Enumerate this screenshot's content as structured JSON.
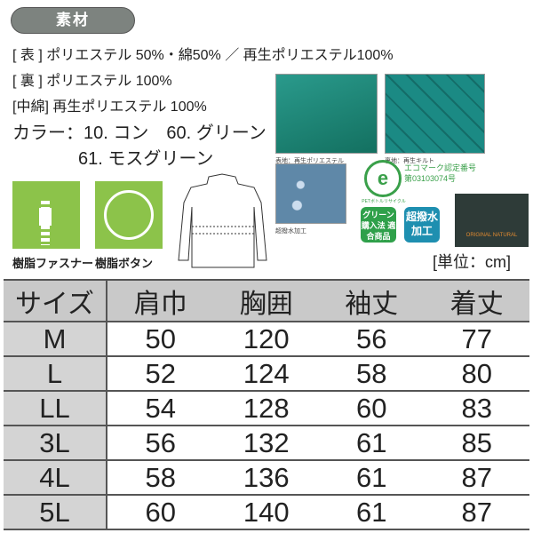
{
  "section_title": "素材",
  "materials": [
    {
      "label": "[ 表 ]",
      "value": "ポリエステル 50%・綿50% ／ 再生ポリエステル100%"
    },
    {
      "label": "[ 裏 ]",
      "value": "ポリエステル 100%"
    },
    {
      "label": "[中綿]",
      "value": "再生ポリエステル 100%"
    }
  ],
  "colors": {
    "label": "カラー：",
    "line1": "10. コン　60. グリーン",
    "line2": "61. モスグリーン"
  },
  "fabric_images": [
    {
      "caption": "表地：再生ポリエステル"
    },
    {
      "caption": "裏地：再生キルト"
    }
  ],
  "water_caption": "超撥水加工",
  "ecomark": {
    "title": "エコマーク認定番号",
    "number": "第03103074号",
    "ring_text": "PETボトルリサイクル"
  },
  "badges": {
    "green": "グリーン 購入法 適合商品",
    "blue": "超撥水 加工"
  },
  "brand_label": "ORIGINAL NATURAL",
  "features": [
    {
      "label": "樹脂ファスナー",
      "icon": "zipper-icon"
    },
    {
      "label": "樹脂ボタン",
      "icon": "button-ring-icon"
    }
  ],
  "unit": "[単位：cm]",
  "accent_colors": {
    "green": "#8cc34a",
    "teal": "#1f8a80",
    "header_gray": "#c9c9c9"
  },
  "size_table": {
    "headers": [
      "サイズ",
      "肩巾",
      "胸囲",
      "袖丈",
      "着丈"
    ],
    "rows": [
      [
        "M",
        "50",
        "120",
        "56",
        "77"
      ],
      [
        "L",
        "52",
        "124",
        "58",
        "80"
      ],
      [
        "LL",
        "54",
        "128",
        "60",
        "83"
      ],
      [
        "3L",
        "56",
        "132",
        "61",
        "85"
      ],
      [
        "4L",
        "58",
        "136",
        "61",
        "87"
      ],
      [
        "5L",
        "60",
        "140",
        "61",
        "87"
      ]
    ]
  }
}
